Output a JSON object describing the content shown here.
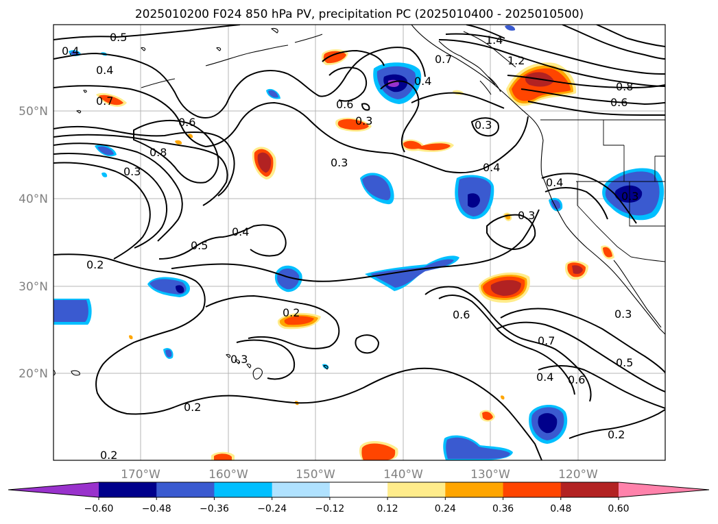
{
  "title": "2025010200 F024 850 hPa PV, precipitation PC (2025010400 - 2025010500)",
  "map": {
    "lon_labels": [
      "170°W",
      "160°W",
      "150°W",
      "140°W",
      "130°W",
      "120°W"
    ],
    "lat_labels": [
      "50°N",
      "40°N",
      "30°N",
      "20°N"
    ],
    "contour_labels": [
      "0.5",
      "0.4",
      "0.4",
      "0.7",
      "0.6",
      "0.8",
      "0.3",
      "0.3",
      "0.2",
      "0.5",
      "0.4",
      "0.6",
      "0.3",
      "0.4",
      "0.4",
      "1.4",
      "1.2",
      "0.7",
      "0.8",
      "0.6",
      "0.3",
      "0.3",
      "0.4",
      "0.3",
      "0.2",
      "0.3",
      "0.6",
      "0.3",
      "0.7",
      "0.5",
      "0.6",
      "0.4",
      "0.2",
      "0.2",
      "0.2"
    ]
  },
  "colorbar": {
    "ticks": [
      "−0.60",
      "−0.48",
      "−0.36",
      "−0.24",
      "−0.12",
      "0.12",
      "0.24",
      "0.36",
      "0.48",
      "0.60"
    ],
    "colors": [
      "#9932cc",
      "#00008b",
      "#3a5ad0",
      "#00bfff",
      "#b0e2ff",
      "#ffffff",
      "#ffec8b",
      "#ffa500",
      "#ff4500",
      "#b22222",
      "#ff82ab"
    ]
  }
}
